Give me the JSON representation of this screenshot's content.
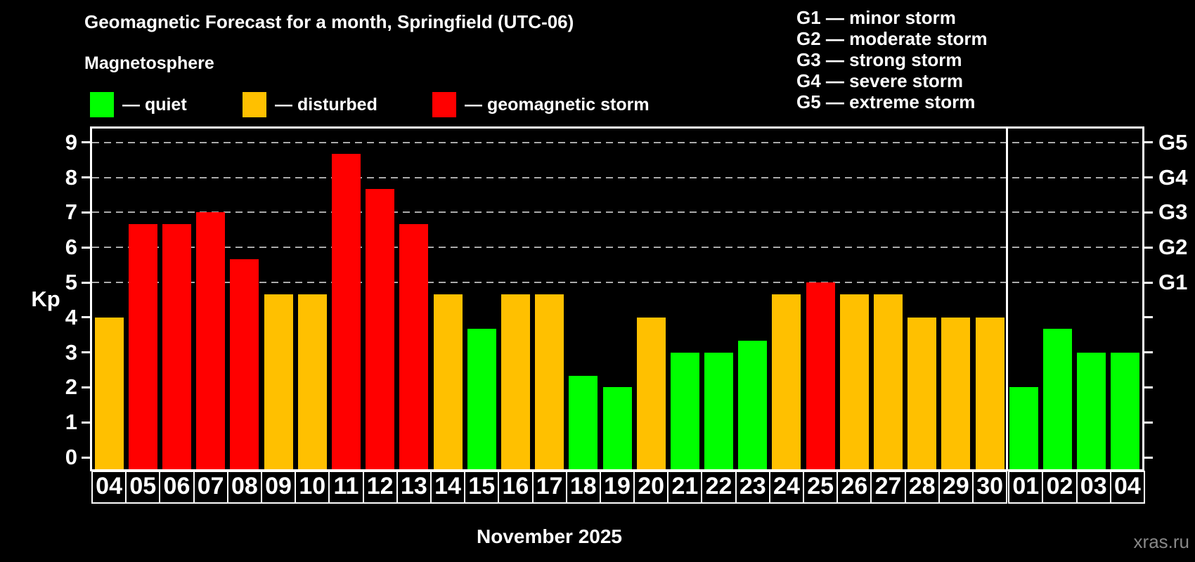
{
  "title": "Geomagnetic Forecast for a month, Springfield (UTC-06)",
  "subtitle": "Magnetosphere",
  "legend": {
    "items": [
      {
        "key": "quiet",
        "label": "— quiet",
        "color": "#00ff00"
      },
      {
        "key": "disturbed",
        "label": "— disturbed",
        "color": "#ffc000"
      },
      {
        "key": "storm",
        "label": "— geomagnetic storm",
        "color": "#ff0000"
      }
    ]
  },
  "g_legend": [
    "G1 — minor storm",
    "G2 — moderate storm",
    "G3 — strong storm",
    "G4 — severe storm",
    "G5 — extreme storm"
  ],
  "watermark": "xras.ru",
  "colors": {
    "quiet": "#00ff00",
    "disturbed": "#ffc000",
    "storm": "#ff0000",
    "grid": "#aaaaaa",
    "frame": "#ffffff",
    "background": "#000000",
    "watermark": "#888888"
  },
  "chart_data": {
    "type": "bar",
    "title": "Geomagnetic Forecast for a month, Springfield (UTC-06)",
    "xlabel": "November 2025",
    "ylabel": "Kp",
    "ylim": [
      0,
      9.4
    ],
    "grid": "dashed horizontal at Kp 5-9 only",
    "grid_levels": [
      5,
      6,
      7,
      8,
      9
    ],
    "yticks": [
      0,
      1,
      2,
      3,
      4,
      5,
      6,
      7,
      8,
      9
    ],
    "right_axis": [
      {
        "label": "G1",
        "kp": 5
      },
      {
        "label": "G2",
        "kp": 6
      },
      {
        "label": "G3",
        "kp": 7
      },
      {
        "label": "G4",
        "kp": 8
      },
      {
        "label": "G5",
        "kp": 9
      }
    ],
    "categories": [
      "04",
      "05",
      "06",
      "07",
      "08",
      "09",
      "10",
      "11",
      "12",
      "13",
      "14",
      "15",
      "16",
      "17",
      "18",
      "19",
      "20",
      "21",
      "22",
      "23",
      "24",
      "25",
      "26",
      "27",
      "28",
      "29",
      "30",
      "01",
      "02",
      "03",
      "04"
    ],
    "values": [
      4.0,
      6.67,
      6.67,
      7.0,
      5.67,
      4.67,
      4.67,
      8.67,
      7.67,
      6.67,
      4.67,
      3.67,
      4.67,
      4.67,
      2.33,
      2.0,
      4.0,
      3.0,
      3.0,
      3.33,
      4.67,
      5.0,
      4.67,
      4.67,
      4.0,
      4.0,
      4.0,
      2.0,
      3.67,
      3.0,
      3.0
    ],
    "statuses": [
      "disturbed",
      "storm",
      "storm",
      "storm",
      "storm",
      "disturbed",
      "disturbed",
      "storm",
      "storm",
      "storm",
      "disturbed",
      "quiet",
      "disturbed",
      "disturbed",
      "quiet",
      "quiet",
      "disturbed",
      "quiet",
      "quiet",
      "quiet",
      "disturbed",
      "storm",
      "disturbed",
      "disturbed",
      "disturbed",
      "disturbed",
      "disturbed",
      "quiet",
      "quiet",
      "quiet",
      "quiet"
    ],
    "separator_after_index": 27,
    "month_label": "November 2025"
  }
}
